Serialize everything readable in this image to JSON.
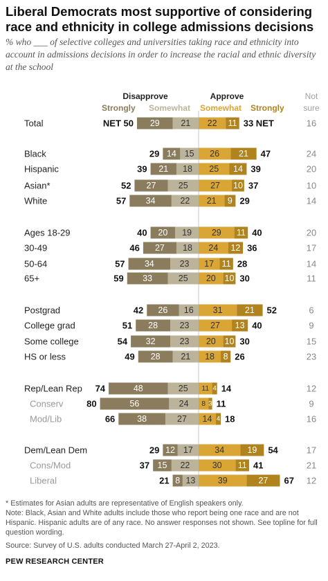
{
  "title": "Liberal Democrats most supportive of considering race and ethnicity in college admissions decisions",
  "subtitle": "% who ___ of selective colleges and universities taking race and ethnicity into account in admissions decisions in order to increase the racial and ethnic diversity at the school",
  "headers": {
    "disapprove": "Disapprove",
    "approve": "Approve",
    "strongly_left": "Strongly",
    "somewhat_left": "Somewhat",
    "somewhat_right": "Somewhat",
    "strongly_right": "Strongly",
    "not_sure_1": "Not",
    "not_sure_2": "sure"
  },
  "colors": {
    "disapprove_strongly": "#8a7c5c",
    "disapprove_somewhat": "#bcb39b",
    "approve_somewhat": "#d9a534",
    "approve_strongly": "#b0831f",
    "sub_label": "#999999"
  },
  "chart_data": {
    "type": "bar",
    "stacked": "diverging",
    "series": [
      {
        "name": "Disapprove Strongly"
      },
      {
        "name": "Disapprove Somewhat"
      },
      {
        "name": "Approve Somewhat"
      },
      {
        "name": "Approve Strongly"
      }
    ],
    "rows": [
      {
        "label": "Total",
        "dstr": 29,
        "dsom": 21,
        "asom": 22,
        "astr": 11,
        "dnet": 50,
        "anet": 33,
        "notsure": 16,
        "total": true
      },
      {
        "label": "Black",
        "dstr": 14,
        "dsom": 15,
        "asom": 26,
        "astr": 21,
        "dnet": 29,
        "anet": 47,
        "notsure": 24
      },
      {
        "label": "Hispanic",
        "dstr": 21,
        "dsom": 18,
        "asom": 25,
        "astr": 14,
        "dnet": 39,
        "anet": 39,
        "notsure": 20
      },
      {
        "label": "Asian*",
        "dstr": 27,
        "dsom": 25,
        "asom": 27,
        "astr": 10,
        "dnet": 52,
        "anet": 37,
        "notsure": 10
      },
      {
        "label": "White",
        "dstr": 34,
        "dsom": 22,
        "asom": 21,
        "astr": 9,
        "dnet": 57,
        "anet": 29,
        "notsure": 14
      },
      {
        "label": "Ages 18-29",
        "dstr": 20,
        "dsom": 19,
        "asom": 29,
        "astr": 11,
        "dnet": 40,
        "anet": 40,
        "notsure": 20
      },
      {
        "label": "30-49",
        "dstr": 27,
        "dsom": 18,
        "asom": 24,
        "astr": 12,
        "dnet": 46,
        "anet": 36,
        "notsure": 17
      },
      {
        "label": "50-64",
        "dstr": 34,
        "dsom": 23,
        "asom": 17,
        "astr": 11,
        "dnet": 57,
        "anet": 28,
        "notsure": 14
      },
      {
        "label": "65+",
        "dstr": 33,
        "dsom": 25,
        "asom": 20,
        "astr": 10,
        "dnet": 59,
        "anet": 30,
        "notsure": 11
      },
      {
        "label": "Postgrad",
        "dstr": 26,
        "dsom": 16,
        "asom": 31,
        "astr": 21,
        "dnet": 42,
        "anet": 52,
        "notsure": 6
      },
      {
        "label": "College grad",
        "dstr": 28,
        "dsom": 23,
        "asom": 27,
        "astr": 13,
        "dnet": 51,
        "anet": 40,
        "notsure": 9
      },
      {
        "label": "Some college",
        "dstr": 32,
        "dsom": 23,
        "asom": 20,
        "astr": 10,
        "dnet": 54,
        "anet": 30,
        "notsure": 15
      },
      {
        "label": "HS or less",
        "dstr": 28,
        "dsom": 21,
        "asom": 18,
        "astr": 8,
        "dnet": 49,
        "anet": 26,
        "notsure": 23
      },
      {
        "label": "Rep/Lean Rep",
        "dstr": 48,
        "dsom": 25,
        "asom": 11,
        "astr": 4,
        "dnet": 74,
        "anet": 14,
        "notsure": 12
      },
      {
        "label": "Conserv",
        "dstr": 56,
        "dsom": 24,
        "asom": 8,
        "astr": 3,
        "dnet": 80,
        "anet": 11,
        "notsure": 9,
        "sub": true
      },
      {
        "label": "Mod/Lib",
        "dstr": 38,
        "dsom": 27,
        "asom": 14,
        "astr": 4,
        "dnet": 66,
        "anet": 18,
        "notsure": 16,
        "sub": true
      },
      {
        "label": "Dem/Lean Dem",
        "dstr": 12,
        "dsom": 17,
        "asom": 34,
        "astr": 19,
        "dnet": 29,
        "anet": 54,
        "notsure": 17
      },
      {
        "label": "Cons/Mod",
        "dstr": 15,
        "dsom": 22,
        "asom": 30,
        "astr": 11,
        "dnet": 37,
        "anet": 41,
        "notsure": 21,
        "sub": true
      },
      {
        "label": "Liberal",
        "dstr": 8,
        "dsom": 13,
        "asom": 39,
        "astr": 27,
        "dnet": 21,
        "anet": 67,
        "notsure": 12,
        "sub": true
      }
    ],
    "net_prefix": "NET",
    "net_suffix": "NET",
    "visible_labels_omitted": {
      "Rep/Lean Rep": [
        "astr"
      ],
      "Conserv": [
        "astr"
      ],
      "Mod/Lib": [
        "astr"
      ]
    }
  },
  "notes": {
    "asterisk": "* Estimates for Asian adults are representative of English speakers only.",
    "note": "Note: Black, Asian and White adults include those who report being one race and are not Hispanic. Hispanic adults are of any race. No answer responses not shown. See topline for full question wording.",
    "source": "Source: Survey of U.S. adults conducted March 27-April 2, 2023.",
    "brand": "PEW RESEARCH CENTER"
  }
}
